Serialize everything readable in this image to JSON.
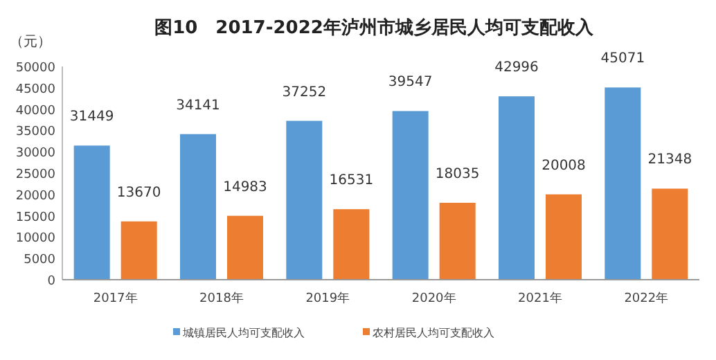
{
  "chart_data": {
    "type": "bar",
    "title": "图10　2017-2022年泸州市城乡居民人均可支配收入",
    "ylabel": "（元）",
    "categories": [
      "2017年",
      "2018年",
      "2019年",
      "2020年",
      "2021年",
      "2022年"
    ],
    "series": [
      {
        "name": "城镇居民人均可支配收入",
        "color": "#5b9bd5",
        "values": [
          31449,
          34141,
          37252,
          39547,
          42996,
          45071
        ]
      },
      {
        "name": "农村居民人均可支配收入",
        "color": "#ed7d31",
        "values": [
          13670,
          14983,
          16531,
          18035,
          20008,
          21348
        ]
      }
    ],
    "ylim": [
      0,
      50000
    ],
    "yticks": [
      0,
      5000,
      10000,
      15000,
      20000,
      25000,
      30000,
      35000,
      40000,
      45000,
      50000
    ],
    "data_labels": true,
    "legend": "bottom left"
  }
}
